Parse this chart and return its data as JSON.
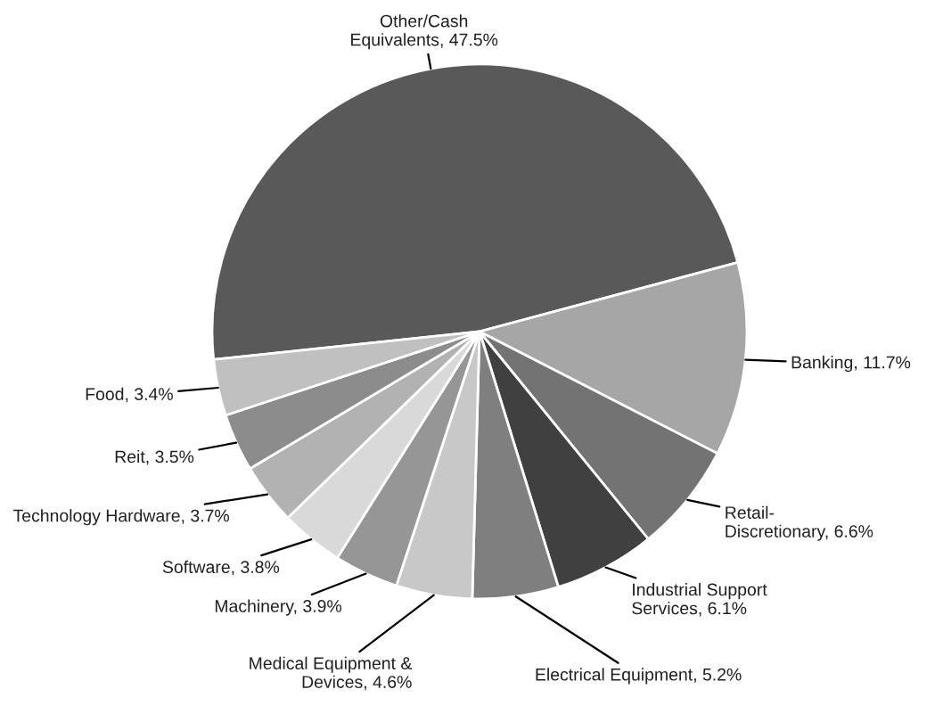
{
  "chart_data": {
    "type": "pie",
    "categories": [
      "Other/Cash Equivalents",
      "Banking",
      "Retail- Discretionary",
      "Industrial Support Services",
      "Electrical Equipment",
      "Medical Equipment & Devices",
      "Machinery",
      "Software",
      "Technology Hardware",
      "Reit",
      "Food"
    ],
    "values": [
      47.5,
      11.7,
      6.6,
      6.1,
      5.2,
      4.6,
      3.9,
      3.8,
      3.7,
      3.5,
      3.4
    ],
    "colors": [
      "#595959",
      "#a6a6a6",
      "#737373",
      "#404040",
      "#7f7f7f",
      "#c8c8c8",
      "#969696",
      "#d9d9d9",
      "#b2b2b2",
      "#8c8c8c",
      "#c0c0c0"
    ],
    "value_labels": [
      "47.5%",
      "11.7%",
      "6.6%",
      "6.1%",
      "5.2%",
      "4.6%",
      "3.9%",
      "3.8%",
      "3.7%",
      "3.5%",
      "3.4%"
    ]
  }
}
